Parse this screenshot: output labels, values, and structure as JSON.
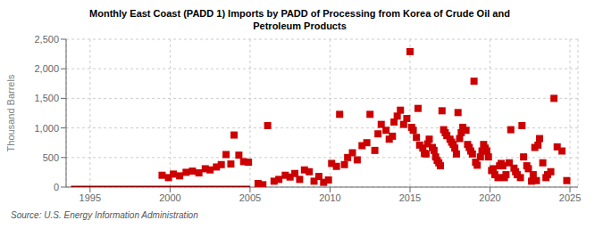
{
  "chart_data": {
    "type": "scatter",
    "title": "Monthly East Coast (PADD 1) Imports by PADD of Processing from Korea of Crude Oil and\nPetroleum Products",
    "ylabel": "Thousand Barrels",
    "source": "Source: U.S. Energy Information Administration",
    "xlim": [
      1993.5,
      2025.5
    ],
    "ylim": [
      0,
      2500
    ],
    "xticks": [
      1995,
      2000,
      2005,
      2010,
      2015,
      2020,
      2025
    ],
    "yticks": [
      0,
      500,
      {
        "value": 1000,
        "label": "1,000"
      },
      {
        "value": 1500,
        "label": "1,500"
      },
      {
        "value": 2000,
        "label": "2,000"
      },
      {
        "value": 2500,
        "label": "2,500"
      }
    ],
    "grid": true,
    "series": [
      {
        "type": "line",
        "color": "#8b0000",
        "x": [
          1993.8,
          2005.0
        ],
        "values": [
          0,
          0
        ]
      },
      {
        "type": "scatter",
        "color": "#cc0000",
        "marker": "square",
        "x": [
          1999.5,
          1999.9,
          2000.2,
          2000.6,
          2001.0,
          2001.4,
          2001.8,
          2002.2,
          2002.5,
          2002.9,
          2003.2,
          2003.5,
          2003.8,
          2004.0,
          2004.3,
          2004.6,
          2004.9,
          2005.5,
          2005.8,
          2006.1,
          2006.5,
          2006.8,
          2007.2,
          2007.5,
          2007.8,
          2008.1,
          2008.4,
          2008.7,
          2009.0,
          2009.3,
          2009.6,
          2009.9,
          2010.1,
          2010.4,
          2010.6,
          2010.9,
          2011.1,
          2011.4,
          2011.7,
          2012.0,
          2012.3,
          2012.5,
          2012.8,
          2013.0,
          2013.2,
          2013.5,
          2013.7,
          2013.9,
          2014.0,
          2014.2,
          2014.4,
          2014.6,
          2014.8,
          2015.0,
          2015.1,
          2015.2,
          2015.4,
          2015.5,
          2015.6,
          2015.8,
          2015.9,
          2016.0,
          2016.1,
          2016.2,
          2016.4,
          2016.5,
          2016.6,
          2016.7,
          2016.8,
          2016.9,
          2017.0,
          2017.1,
          2017.2,
          2017.3,
          2017.5,
          2017.6,
          2017.7,
          2017.8,
          2017.9,
          2018.0,
          2018.1,
          2018.2,
          2018.3,
          2018.5,
          2018.6,
          2018.7,
          2018.8,
          2018.9,
          2019.0,
          2019.1,
          2019.2,
          2019.4,
          2019.5,
          2019.6,
          2019.7,
          2019.8,
          2019.9,
          2020.1,
          2020.2,
          2020.3,
          2020.5,
          2020.6,
          2020.7,
          2020.8,
          2020.9,
          2021.0,
          2021.2,
          2021.3,
          2021.5,
          2021.6,
          2021.7,
          2021.9,
          2022.0,
          2022.1,
          2022.3,
          2022.4,
          2022.6,
          2022.7,
          2022.8,
          2022.9,
          2023.0,
          2023.1,
          2023.3,
          2023.5,
          2023.6,
          2023.8,
          2024.0,
          2024.2,
          2024.5,
          2024.8
        ],
        "values": [
          200,
          160,
          220,
          190,
          250,
          270,
          240,
          310,
          290,
          340,
          380,
          550,
          390,
          880,
          540,
          430,
          420,
          60,
          40,
          1040,
          100,
          130,
          200,
          170,
          230,
          130,
          290,
          260,
          100,
          180,
          80,
          120,
          400,
          350,
          1230,
          380,
          500,
          580,
          460,
          700,
          750,
          1230,
          620,
          900,
          1060,
          960,
          810,
          860,
          1100,
          1200,
          1300,
          1060,
          1160,
          2290,
          1010,
          960,
          840,
          1330,
          710,
          660,
          570,
          560,
          730,
          810,
          670,
          620,
          510,
          450,
          410,
          360,
          1290,
          970,
          920,
          870,
          810,
          760,
          720,
          660,
          560,
          1260,
          820,
          920,
          1010,
          960,
          720,
          670,
          610,
          560,
          1790,
          420,
          370,
          510,
          610,
          720,
          660,
          610,
          510,
          280,
          310,
          210,
          160,
          360,
          400,
          360,
          160,
          210,
          410,
          970,
          320,
          260,
          210,
          160,
          1040,
          510,
          360,
          310,
          100,
          210,
          670,
          110,
          710,
          820,
          410,
          160,
          210,
          260,
          1500,
          680,
          610,
          110
        ]
      }
    ]
  }
}
